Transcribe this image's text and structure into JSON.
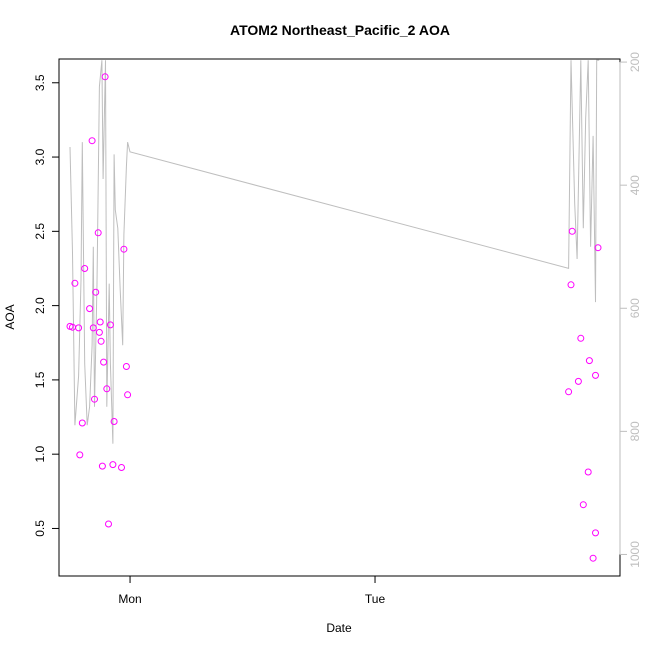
{
  "chart_data": {
    "type": "scatter",
    "title": "ATOM2 Northeast_Pacific_2 AOA",
    "xlabel": "Date",
    "ylabel": "AOA",
    "x_ticks": [
      {
        "label": "Mon",
        "value": 1.0
      },
      {
        "label": "Tue",
        "value": 2.0
      }
    ],
    "xlim": [
      0.71,
      3.0
    ],
    "ylim": [
      0.18,
      3.66
    ],
    "y_ticks": [
      0.5,
      1.0,
      1.5,
      2.0,
      2.5,
      3.0,
      3.5
    ],
    "y2_lim": [
      1035,
      195
    ],
    "y2_ticks": [
      200,
      400,
      600,
      800,
      1000
    ],
    "point_color": "#ff00ff",
    "line_color": "#bebebe",
    "series": [
      {
        "type": "points",
        "points": [
          [
            0.755,
            1.86
          ],
          [
            0.765,
            1.855
          ],
          [
            0.775,
            2.15
          ],
          [
            0.79,
            1.85
          ],
          [
            0.795,
            0.995
          ],
          [
            0.805,
            1.21
          ],
          [
            0.815,
            2.25
          ],
          [
            0.835,
            1.98
          ],
          [
            0.845,
            3.11
          ],
          [
            0.85,
            1.85
          ],
          [
            0.855,
            1.37
          ],
          [
            0.86,
            2.09
          ],
          [
            0.87,
            2.49
          ],
          [
            0.875,
            1.82
          ],
          [
            0.878,
            1.89
          ],
          [
            0.882,
            1.76
          ],
          [
            0.887,
            0.92
          ],
          [
            0.892,
            1.62
          ],
          [
            0.898,
            3.54
          ],
          [
            0.905,
            1.44
          ],
          [
            0.912,
            0.53
          ],
          [
            0.92,
            1.87
          ],
          [
            0.93,
            0.93
          ],
          [
            0.935,
            1.22
          ],
          [
            0.965,
            0.91
          ],
          [
            0.975,
            2.38
          ],
          [
            0.985,
            1.59
          ],
          [
            0.99,
            1.4
          ],
          [
            2.79,
            1.42
          ],
          [
            2.8,
            2.14
          ],
          [
            2.805,
            2.5
          ],
          [
            2.83,
            1.49
          ],
          [
            2.84,
            1.78
          ],
          [
            2.85,
            0.66
          ],
          [
            2.87,
            0.88
          ],
          [
            2.875,
            1.63
          ],
          [
            2.89,
            0.3
          ],
          [
            2.9,
            0.47
          ],
          [
            2.9,
            1.53
          ],
          [
            2.91,
            2.39
          ]
        ]
      },
      {
        "type": "line",
        "points": [
          [
            0.755,
            338
          ],
          [
            0.765,
            510
          ],
          [
            0.775,
            790
          ],
          [
            0.79,
            710
          ],
          [
            0.8,
            555
          ],
          [
            0.805,
            330
          ],
          [
            0.815,
            690
          ],
          [
            0.825,
            790
          ],
          [
            0.835,
            760
          ],
          [
            0.845,
            660
          ],
          [
            0.85,
            500
          ],
          [
            0.855,
            760
          ],
          [
            0.865,
            560
          ],
          [
            0.875,
            240
          ],
          [
            0.885,
            197
          ],
          [
            0.89,
            390
          ],
          [
            0.9,
            197
          ],
          [
            0.905,
            760
          ],
          [
            0.915,
            560
          ],
          [
            0.92,
            690
          ],
          [
            0.93,
            820
          ],
          [
            0.935,
            350
          ],
          [
            0.94,
            440
          ],
          [
            0.95,
            470
          ],
          [
            0.96,
            570
          ],
          [
            0.97,
            660
          ],
          [
            0.975,
            480
          ],
          [
            0.985,
            370
          ],
          [
            0.99,
            330
          ],
          [
            1.0,
            346
          ],
          [
            2.79,
            535
          ],
          [
            2.8,
            197
          ],
          [
            2.815,
            430
          ],
          [
            2.825,
            520
          ],
          [
            2.84,
            197
          ],
          [
            2.85,
            470
          ],
          [
            2.86,
            290
          ],
          [
            2.87,
            197
          ],
          [
            2.88,
            500
          ],
          [
            2.89,
            320
          ],
          [
            2.9,
            590
          ],
          [
            2.905,
            197
          ],
          [
            2.915,
            197
          ]
        ]
      }
    ]
  }
}
